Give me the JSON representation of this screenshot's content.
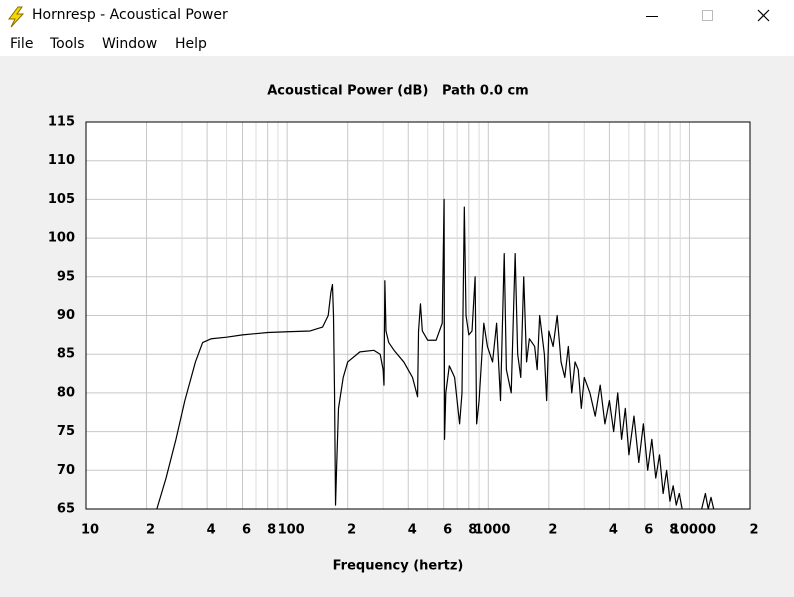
{
  "window": {
    "title": "Hornresp - Acoustical Power",
    "menu": [
      "File",
      "Tools",
      "Window",
      "Help"
    ]
  },
  "chart_data": {
    "type": "line",
    "title": "Acoustical Power (dB)   Path 0.0 cm",
    "x_label": "Frequency (hertz)",
    "xscale": "log",
    "xlim": [
      10,
      20000
    ],
    "ylim": [
      65,
      115
    ],
    "grid": true,
    "color": "#000000",
    "xticks": [
      10,
      {
        "value": 20,
        "label": "2"
      },
      {
        "value": 40,
        "label": "4"
      },
      {
        "value": 60,
        "label": "6"
      },
      {
        "value": 80,
        "label": "8"
      },
      100,
      {
        "value": 200,
        "label": "2"
      },
      {
        "value": 400,
        "label": "4"
      },
      {
        "value": 600,
        "label": "6"
      },
      {
        "value": 800,
        "label": "8"
      },
      1000,
      {
        "value": 2000,
        "label": "2"
      },
      {
        "value": 4000,
        "label": "4"
      },
      {
        "value": 6000,
        "label": "6"
      },
      {
        "value": 8000,
        "label": "8"
      },
      10000,
      {
        "value": 20000,
        "label": "2"
      }
    ],
    "xminor": [
      30,
      50,
      70,
      90,
      300,
      500,
      700,
      900,
      3000,
      5000,
      7000,
      9000
    ],
    "yticks": [
      65,
      70,
      75,
      80,
      85,
      90,
      95,
      100,
      105,
      110,
      115
    ],
    "x": [
      22.5,
      25,
      28,
      31,
      35,
      38,
      42,
      50,
      60,
      80,
      100,
      130,
      150,
      160,
      165,
      168,
      170,
      172,
      174,
      176,
      180,
      190,
      200,
      230,
      270,
      290,
      300,
      303,
      306,
      310,
      320,
      340,
      380,
      420,
      445,
      450,
      460,
      470,
      500,
      550,
      590,
      603,
      606,
      615,
      640,
      680,
      720,
      740,
      760,
      775,
      800,
      830,
      860,
      875,
      900,
      950,
      990,
      1050,
      1100,
      1150,
      1200,
      1230,
      1300,
      1360,
      1400,
      1450,
      1500,
      1550,
      1600,
      1700,
      1750,
      1800,
      1900,
      1950,
      2000,
      2100,
      2200,
      2300,
      2400,
      2500,
      2600,
      2700,
      2800,
      2900,
      3000,
      3200,
      3400,
      3600,
      3800,
      4000,
      4200,
      4400,
      4600,
      4800,
      5000,
      5300,
      5600,
      5900,
      6200,
      6500,
      6800,
      7100,
      7400,
      7700,
      8000,
      8300,
      8600,
      8900,
      9200,
      10500,
      11500,
      12000,
      12400,
      12800,
      13200
    ],
    "values": [
      65,
      69,
      74,
      79,
      84,
      86.5,
      87,
      87.2,
      87.5,
      87.8,
      87.9,
      88,
      88.5,
      90,
      93,
      94,
      90,
      80,
      65.5,
      70,
      78,
      82,
      84,
      85.3,
      85.5,
      85,
      83,
      81,
      94.5,
      88,
      86.5,
      85.5,
      84,
      82,
      79.5,
      88,
      91.5,
      88,
      86.8,
      86.8,
      89,
      105,
      74,
      80,
      83.5,
      82,
      76,
      80,
      104,
      90,
      87.5,
      88,
      95,
      76,
      79,
      89,
      86,
      84,
      89,
      79,
      98,
      83,
      80,
      98,
      85,
      82,
      95,
      84,
      87,
      86,
      83,
      90,
      85,
      79,
      88,
      86,
      90,
      84,
      82,
      86,
      80,
      84,
      83,
      78,
      82,
      80,
      77,
      81,
      76,
      79,
      75,
      80,
      74,
      78,
      72,
      77,
      71,
      76,
      70,
      74,
      69,
      72,
      67,
      70,
      66,
      68,
      65.5,
      67,
      65,
      null,
      65,
      67,
      65,
      66.5,
      65
    ]
  }
}
